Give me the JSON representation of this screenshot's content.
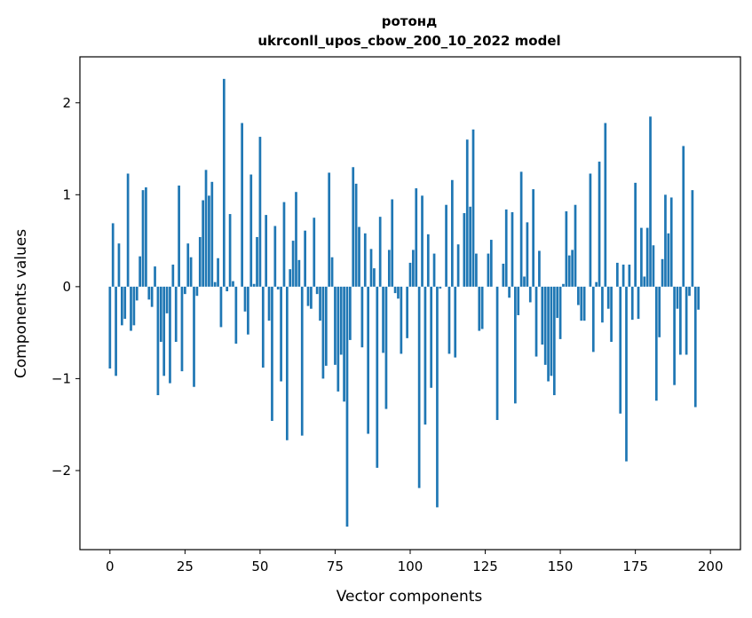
{
  "chart_data": {
    "type": "bar",
    "title": "ротонд",
    "subtitle": "ukrconll_upos_cbow_200_10_2022 model",
    "xlabel": "Vector components",
    "ylabel": "Components values",
    "xlim": [
      -10,
      210
    ],
    "ylim": [
      -2.86,
      2.5
    ],
    "xticks": [
      0,
      25,
      50,
      75,
      100,
      125,
      150,
      175,
      200
    ],
    "yticks": [
      -2,
      -1,
      0,
      1,
      2
    ],
    "ytick_labels": [
      "−2",
      "−1",
      "0",
      "1",
      "2"
    ],
    "bar_color": "#1f77b4",
    "values": [
      -0.89,
      0.69,
      -0.97,
      0.47,
      -0.42,
      -0.35,
      1.23,
      -0.48,
      -0.42,
      -0.15,
      0.33,
      1.05,
      1.08,
      -0.14,
      -0.22,
      0.22,
      -1.18,
      -0.6,
      -0.97,
      -0.29,
      -1.05,
      0.24,
      -0.6,
      1.1,
      -0.92,
      -0.08,
      0.47,
      0.32,
      -1.09,
      -0.1,
      0.54,
      0.94,
      1.27,
      0.99,
      1.14,
      0.05,
      0.31,
      -0.44,
      2.26,
      -0.05,
      0.79,
      0.06,
      -0.62,
      0.0,
      1.78,
      -0.27,
      -0.52,
      1.22,
      0.03,
      0.54,
      1.63,
      -0.88,
      0.78,
      -0.37,
      -1.46,
      0.66,
      -0.03,
      -1.03,
      0.92,
      -1.67,
      0.19,
      0.5,
      1.03,
      0.29,
      -1.62,
      0.61,
      -0.21,
      -0.24,
      0.75,
      -0.08,
      -0.37,
      -1.0,
      -0.86,
      1.24,
      0.32,
      -0.85,
      -1.14,
      -0.74,
      -1.25,
      -2.61,
      -0.58,
      1.3,
      1.12,
      0.65,
      -0.66,
      0.58,
      -1.6,
      0.41,
      0.2,
      -1.97,
      0.76,
      -0.72,
      -1.33,
      0.4,
      0.95,
      -0.07,
      -0.13,
      -0.73,
      0.0,
      -0.56,
      0.26,
      0.4,
      1.07,
      -2.19,
      0.99,
      -1.5,
      0.57,
      -1.1,
      0.36,
      -2.4,
      -0.02,
      0.0,
      0.89,
      -0.73,
      1.16,
      -0.77,
      0.46,
      0.0,
      0.8,
      1.6,
      0.87,
      1.71,
      0.36,
      -0.48,
      -0.46,
      0.0,
      0.36,
      0.51,
      0.0,
      -1.45,
      0.0,
      0.25,
      0.84,
      -0.12,
      0.81,
      -1.27,
      -0.31,
      1.25,
      0.11,
      0.7,
      -0.17,
      1.06,
      -0.76,
      0.39,
      -0.63,
      -0.85,
      -1.03,
      -0.97,
      -1.18,
      -0.34,
      -0.57,
      0.03,
      0.82,
      0.34,
      0.4,
      0.89,
      -0.2,
      -0.37,
      -0.37,
      0.0,
      1.23,
      -0.71,
      0.05,
      1.36,
      -0.39,
      1.78,
      -0.24,
      -0.6,
      0.0,
      0.26,
      -1.38,
      0.24,
      -1.9,
      0.24,
      -0.36,
      1.13,
      -0.35,
      0.64,
      0.11,
      0.64,
      1.85,
      0.45,
      -1.24,
      -0.55,
      0.3,
      1.0,
      0.58,
      0.97,
      -1.07,
      -0.24,
      -0.74,
      1.53,
      -0.74,
      -0.1,
      1.05,
      -1.31,
      -0.25
    ]
  }
}
